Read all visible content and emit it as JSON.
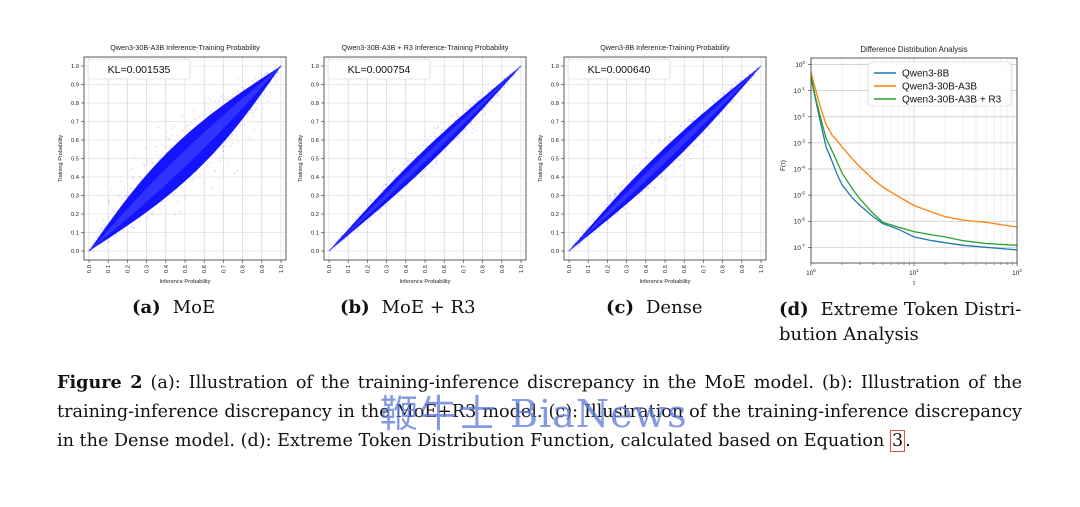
{
  "colors": {
    "density": "#0000ff",
    "qwen8b": "#1f77b4",
    "qwen30b": "#ff7f0e",
    "qwen30b_r3": "#2ca02c"
  },
  "panels": [
    {
      "title": "Qwen3-30B-A3B Inference-Training Probability",
      "kl": "KL=0.001535",
      "spread": 0.25,
      "subcap_tag": "(a)",
      "subcap_text": "MoE"
    },
    {
      "title": "Qwen3-30B-A3B + R3 Inference-Training Probability",
      "kl": "KL=0.000754",
      "spread": 0.1,
      "subcap_tag": "(b)",
      "subcap_text": "MoE + R3"
    },
    {
      "title": "Qwen3-8B Inference-Training Probability",
      "kl": "KL=0.000640",
      "spread": 0.12,
      "subcap_tag": "(c)",
      "subcap_text": "Dense"
    }
  ],
  "subcap_d": {
    "tag": "(d)",
    "line1": "Extreme Token Distri-",
    "line2": "bution Analysis"
  },
  "chart_data": [
    {
      "type": "scatter",
      "title": "Qwen3-30B-A3B Inference-Training Probability",
      "xlabel": "Inference Probability",
      "ylabel": "Training Probability",
      "xlim": [
        0,
        1
      ],
      "ylim": [
        0,
        1
      ],
      "xticks": [
        "0.0",
        "0.1",
        "0.2",
        "0.3",
        "0.4",
        "0.5",
        "0.6",
        "0.7",
        "0.8",
        "0.9",
        "1.0"
      ],
      "yticks": [
        "0.0",
        "0.1",
        "0.2",
        "0.3",
        "0.4",
        "0.5",
        "0.6",
        "0.7",
        "0.8",
        "0.9",
        "1.0"
      ],
      "annotation": "KL=0.001535",
      "grid": true
    },
    {
      "type": "scatter",
      "title": "Qwen3-30B-A3B + R3 Inference-Training Probability",
      "xlabel": "Inference Probability",
      "ylabel": "Training Probability",
      "xlim": [
        0,
        1
      ],
      "ylim": [
        0,
        1
      ],
      "xticks": [
        "0.0",
        "0.1",
        "0.2",
        "0.3",
        "0.4",
        "0.5",
        "0.6",
        "0.7",
        "0.8",
        "0.9",
        "1.0"
      ],
      "yticks": [
        "0.0",
        "0.1",
        "0.2",
        "0.3",
        "0.4",
        "0.5",
        "0.6",
        "0.7",
        "0.8",
        "0.9",
        "1.0"
      ],
      "annotation": "KL=0.000754",
      "grid": true
    },
    {
      "type": "scatter",
      "title": "Qwen3-8B Inference-Training Probability",
      "xlabel": "Inference Probability",
      "ylabel": "Training Probability",
      "xlim": [
        0,
        1
      ],
      "ylim": [
        0,
        1
      ],
      "xticks": [
        "0.0",
        "0.1",
        "0.2",
        "0.3",
        "0.4",
        "0.5",
        "0.6",
        "0.7",
        "0.8",
        "0.9",
        "1.0"
      ],
      "yticks": [
        "0.0",
        "0.1",
        "0.2",
        "0.3",
        "0.4",
        "0.5",
        "0.6",
        "0.7",
        "0.8",
        "0.9",
        "1.0"
      ],
      "annotation": "KL=0.000640",
      "grid": true
    },
    {
      "type": "line",
      "title": "Difference Distribution Analysis",
      "xlabel": "τ",
      "ylabel": "F(τ)",
      "xscale": "log",
      "yscale": "log",
      "xlim": [
        1,
        100
      ],
      "ylim": [
        1e-07,
        1
      ],
      "grid": true,
      "legend": "top-right",
      "xtick_labels": [
        {
          "x": 1,
          "base": "10",
          "exp": "0"
        },
        {
          "x": 10,
          "base": "10",
          "exp": "1"
        },
        {
          "x": 100,
          "base": "10",
          "exp": "2"
        }
      ],
      "ytick_labels": [
        {
          "y": 1,
          "base": "10",
          "exp": "0"
        },
        {
          "y": 0.1,
          "base": "10",
          "exp": "-1"
        },
        {
          "y": 0.01,
          "base": "10",
          "exp": "-2"
        },
        {
          "y": 0.001,
          "base": "10",
          "exp": "-3"
        },
        {
          "y": 0.0001,
          "base": "10",
          "exp": "-4"
        },
        {
          "y": 1e-05,
          "base": "10",
          "exp": "-5"
        },
        {
          "y": 1e-06,
          "base": "10",
          "exp": "-6"
        },
        {
          "y": 1e-07,
          "base": "10",
          "exp": "-7"
        }
      ],
      "series": [
        {
          "name": "Qwen3-8B",
          "color": "#1f77b4",
          "x": [
            1,
            1.1,
            1.25,
            1.4,
            1.6,
            1.8,
            2,
            2.5,
            3,
            4,
            5,
            7,
            10,
            15,
            20,
            30,
            50,
            100
          ],
          "y": [
            0.3,
            0.05,
            0.005,
            0.0007,
            0.0002,
            6e-05,
            2.5e-05,
            8e-06,
            4e-06,
            1.5e-06,
            8e-07,
            5e-07,
            2.5e-07,
            1.8e-07,
            1.5e-07,
            1.2e-07,
            1e-07,
            8e-08
          ]
        },
        {
          "name": "Qwen3-30B-A3B",
          "color": "#ff7f0e",
          "x": [
            1,
            1.1,
            1.25,
            1.4,
            1.6,
            1.8,
            2,
            2.5,
            3,
            4,
            5,
            7,
            10,
            15,
            20,
            30,
            50,
            100
          ],
          "y": [
            0.5,
            0.12,
            0.02,
            0.005,
            0.002,
            0.0012,
            0.0007,
            0.00025,
            0.00012,
            4e-05,
            2e-05,
            9e-06,
            4e-06,
            2.2e-06,
            1.5e-06,
            1.1e-06,
            9e-07,
            6e-07
          ]
        },
        {
          "name": "Qwen3-30B-A3B + R3",
          "color": "#2ca02c",
          "x": [
            1,
            1.1,
            1.25,
            1.4,
            1.6,
            1.8,
            2,
            2.5,
            3,
            4,
            5,
            7,
            10,
            15,
            20,
            30,
            50,
            100
          ],
          "y": [
            0.35,
            0.06,
            0.008,
            0.0015,
            0.0005,
            0.00018,
            7e-05,
            1.8e-05,
            7e-06,
            2e-06,
            9e-07,
            6e-07,
            4e-07,
            3e-07,
            2.5e-07,
            1.8e-07,
            1.4e-07,
            1.2e-07
          ]
        }
      ]
    }
  ],
  "caption": {
    "label": "Figure 2",
    "text_1": "(a): Illustration of the training-inference discrepancy in the MoE model. (b): Illustration of the training-inference discrepancy in the MoE+R3 model. (c): Illustration of the training-inference discrepancy in the Dense model. (d): Extreme Token Distribution Function, calculated based on Equation",
    "ref": "3",
    "text_2": "."
  },
  "watermark": "鞭牛士 BiaNews"
}
